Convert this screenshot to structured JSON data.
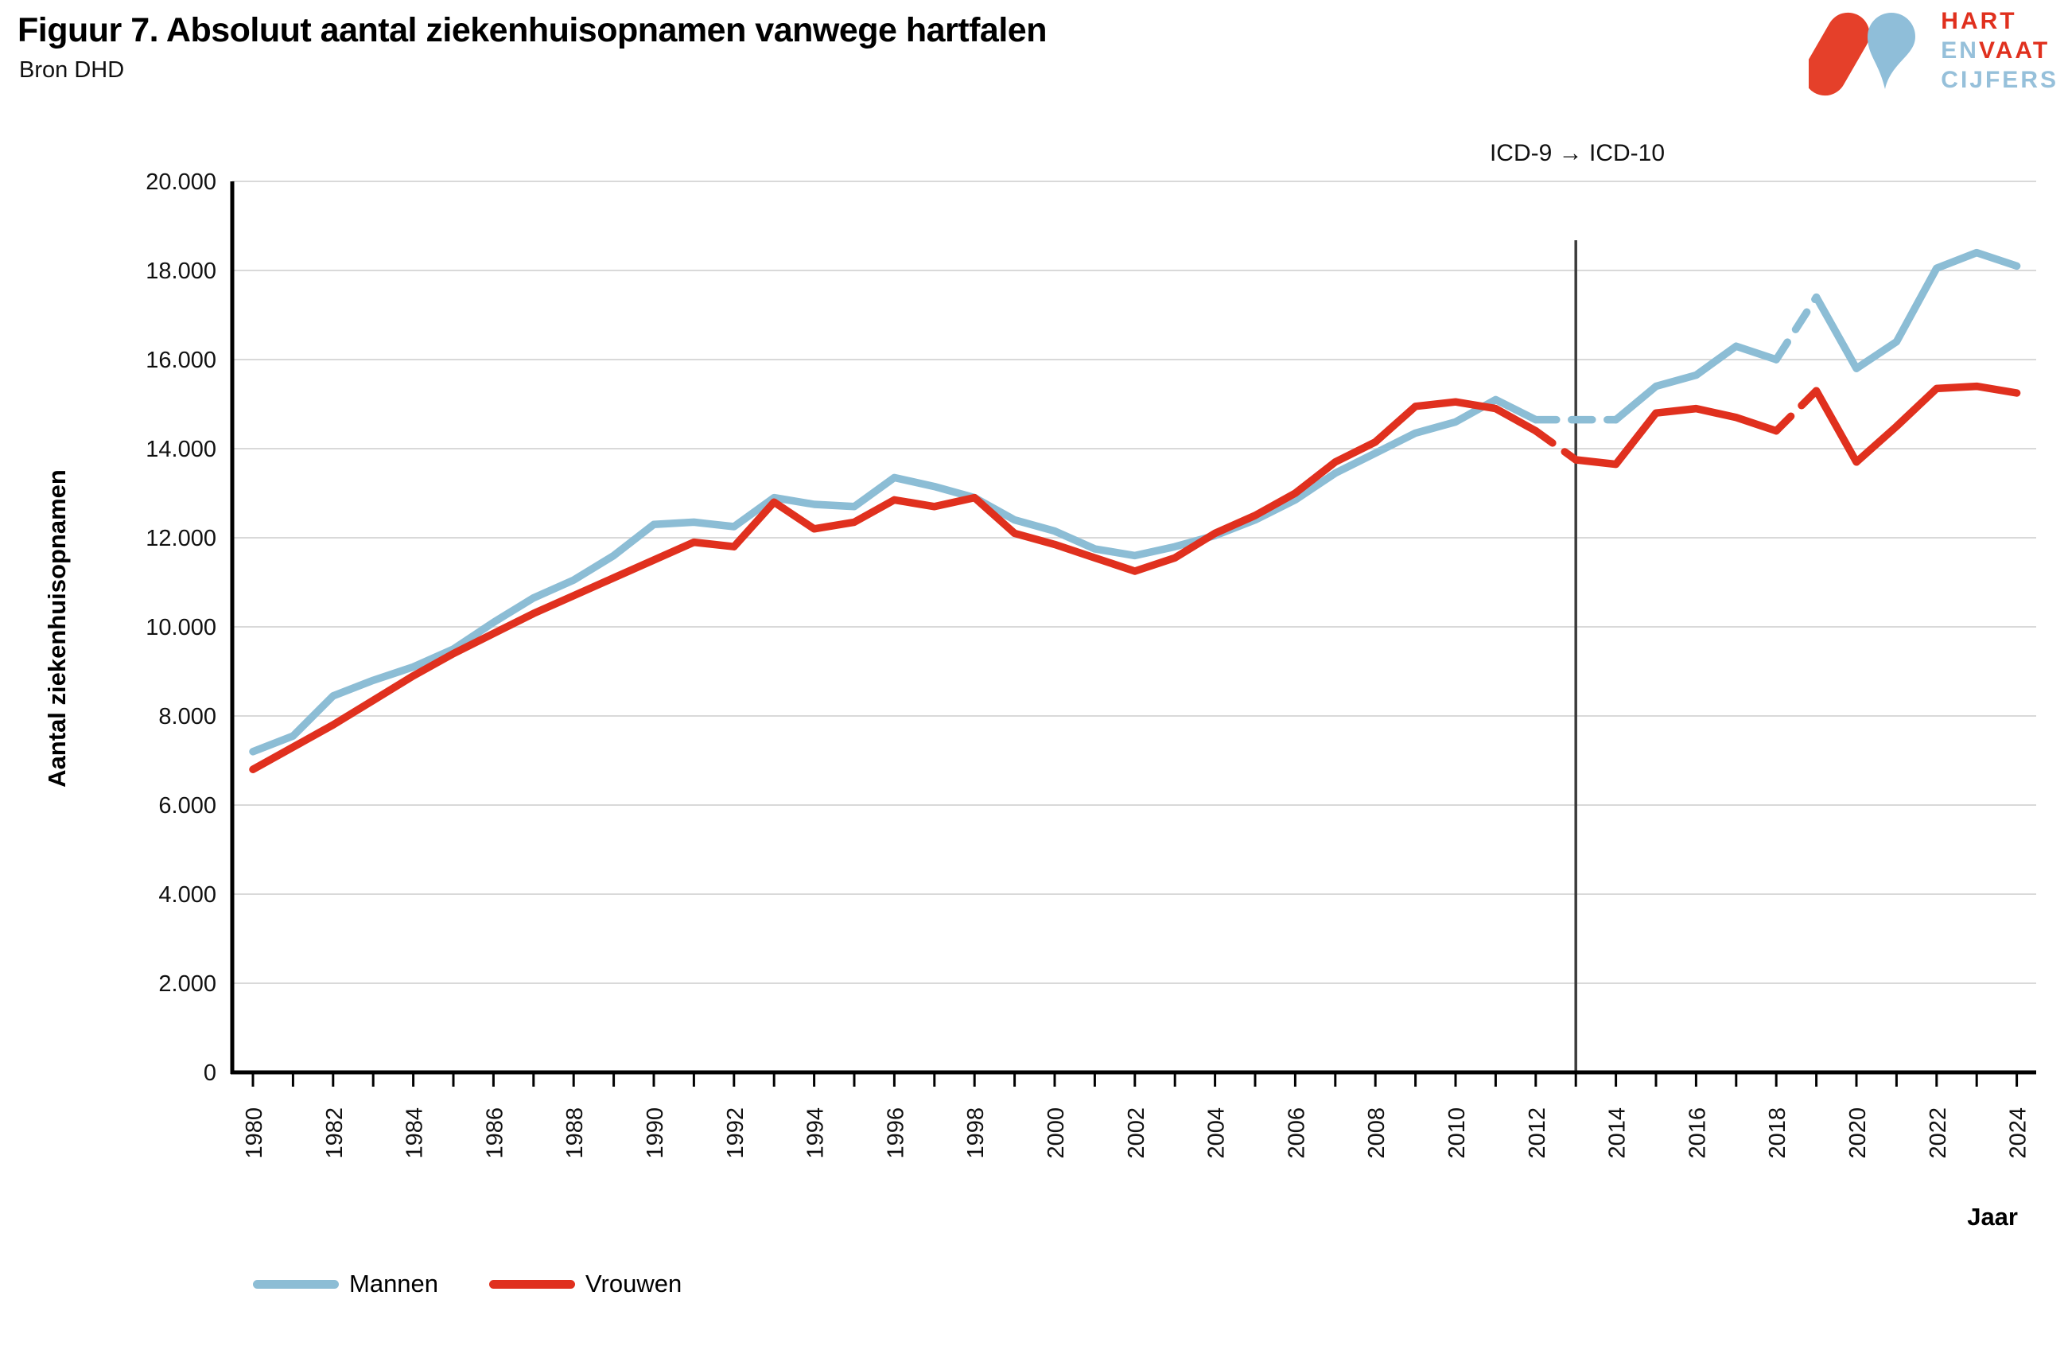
{
  "header": {
    "title": "Figuur 7. Absoluut aantal ziekenhuisopnamen vanwege hartfalen",
    "source": "Bron DHD"
  },
  "logo": {
    "line1": "HART",
    "line2a": "EN",
    "line2b": "VAAT",
    "line3": "CIJFERS",
    "red": "#e0301e",
    "blue": "#96c0da"
  },
  "axes": {
    "y_title": "Aantal ziekenhuisopnamen",
    "x_title": "Jaar"
  },
  "chart_data": {
    "type": "line",
    "title": "Figuur 7. Absoluut aantal ziekenhuisopnamen vanwege hartfalen",
    "xlabel": "Jaar",
    "ylabel": "Aantal ziekenhuisopnamen",
    "ylim": [
      0,
      20000
    ],
    "y_tick_interval": 2000,
    "y_tick_labels": [
      "0",
      "2.000",
      "4.000",
      "6.000",
      "8.000",
      "10.000",
      "12.000",
      "14.000",
      "16.000",
      "18.000",
      "20.000"
    ],
    "grid": "horizontal",
    "legend_position": "bottom-left",
    "x_label_step": 2,
    "x": [
      1980,
      1981,
      1982,
      1983,
      1984,
      1985,
      1986,
      1987,
      1988,
      1989,
      1990,
      1991,
      1992,
      1993,
      1994,
      1995,
      1996,
      1997,
      1998,
      1999,
      2000,
      2001,
      2002,
      2003,
      2004,
      2005,
      2006,
      2007,
      2008,
      2009,
      2010,
      2011,
      2012,
      2013,
      2014,
      2015,
      2016,
      2017,
      2018,
      2019,
      2020,
      2021,
      2022,
      2023,
      2024
    ],
    "series": [
      {
        "name": "Mannen",
        "color": "#8cbdd5",
        "values": [
          7200,
          7550,
          8450,
          8800,
          9100,
          9500,
          10100,
          10650,
          11050,
          11600,
          12300,
          12350,
          12250,
          12900,
          12750,
          12700,
          13350,
          13150,
          12900,
          12400,
          12150,
          11750,
          11600,
          11800,
          12050,
          12400,
          12850,
          13450,
          13900,
          14350,
          14600,
          15100,
          14650,
          14650,
          14650,
          15400,
          15650,
          16300,
          16000,
          17400,
          15800,
          16400,
          18050,
          18400,
          18100
        ]
      },
      {
        "name": "Vrouwen",
        "color": "#e0301e",
        "values": [
          6800,
          7300,
          7800,
          8350,
          8900,
          9400,
          9850,
          10300,
          10700,
          11100,
          11500,
          11900,
          11800,
          12800,
          12200,
          12350,
          12850,
          12700,
          12900,
          12100,
          11850,
          11550,
          11250,
          11550,
          12100,
          12500,
          13000,
          13700,
          14150,
          14950,
          15050,
          14900,
          14400,
          13750,
          13650,
          14800,
          14900,
          14700,
          14400,
          15300,
          13700,
          14500,
          15350,
          15400,
          15250
        ]
      }
    ],
    "dashed_segments": [
      {
        "series": "Mannen",
        "from": 2012,
        "to": 2014
      },
      {
        "series": "Mannen",
        "from": 2018,
        "to": 2019
      },
      {
        "series": "Vrouwen",
        "from": 2012,
        "to": 2013
      },
      {
        "series": "Vrouwen",
        "from": 2018,
        "to": 2019
      }
    ],
    "vertical_marker": {
      "year": 2013,
      "label": "ICD-9 → ICD-10"
    }
  }
}
